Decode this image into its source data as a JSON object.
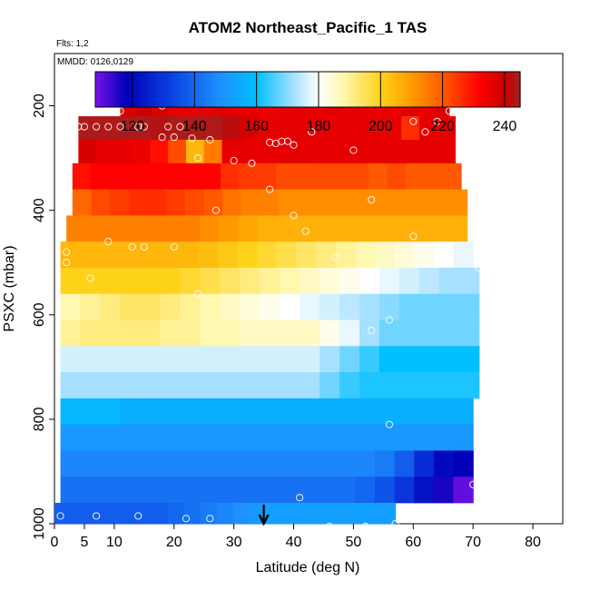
{
  "chart_data": {
    "type": "heatmap",
    "title": "ATOM2 Northeast_Pacific_1 TAS",
    "note_flights": "Flts: 1,2",
    "note_dates": "MMDD: 0126,0129",
    "xlabel": "Latitude (deg N)",
    "ylabel": "PSXC (mbar)",
    "xlim": [
      0,
      85
    ],
    "ylim": [
      1000,
      100
    ],
    "x_ticks": [
      0,
      5,
      10,
      20,
      30,
      40,
      50,
      60,
      70,
      80
    ],
    "y_ticks": [
      200,
      400,
      600,
      800,
      1000
    ],
    "colorbar": {
      "range": [
        108,
        245
      ],
      "ticks": [
        120,
        140,
        160,
        180,
        200,
        220,
        240
      ],
      "stops": [
        {
          "v": 108,
          "c": "#7b13e8"
        },
        {
          "v": 118,
          "c": "#0000b8"
        },
        {
          "v": 132,
          "c": "#0a3ee0"
        },
        {
          "v": 148,
          "c": "#1e90ff"
        },
        {
          "v": 160,
          "c": "#00bfff"
        },
        {
          "v": 172,
          "c": "#a6e0ff"
        },
        {
          "v": 180,
          "c": "#ffffff"
        },
        {
          "v": 188,
          "c": "#fff8b0"
        },
        {
          "v": 200,
          "c": "#ffd21a"
        },
        {
          "v": 210,
          "c": "#ff9b00"
        },
        {
          "v": 220,
          "c": "#ff5a00"
        },
        {
          "v": 232,
          "c": "#ff0000"
        },
        {
          "v": 240,
          "c": "#cc0000"
        },
        {
          "v": 245,
          "c": "#a52020"
        }
      ]
    },
    "pressure_bands": [
      {
        "p": [
          170,
          220
        ],
        "lat": [
          11,
          66
        ],
        "tas": [
          238,
          240,
          238,
          236,
          236,
          236,
          237,
          236,
          236,
          235,
          236,
          236,
          236,
          237,
          236,
          236,
          236,
          235,
          237,
          236,
          238
        ]
      },
      {
        "p": [
          220,
          265
        ],
        "lat": [
          4,
          67
        ],
        "tas": [
          244,
          244,
          244,
          244,
          243,
          244,
          244,
          244,
          242,
          238,
          236,
          236,
          236,
          236,
          236,
          236,
          236,
          236,
          226,
          236,
          236
        ]
      },
      {
        "p": [
          265,
          310
        ],
        "lat": [
          4,
          67
        ],
        "tas": [
          238,
          236,
          236,
          235,
          230,
          222,
          205,
          215,
          236,
          236,
          236,
          236,
          236,
          236,
          236,
          236,
          236,
          236,
          236,
          236,
          236
        ]
      },
      {
        "p": [
          310,
          360
        ],
        "lat": [
          3,
          68
        ],
        "tas": [
          230,
          232,
          232,
          232,
          232,
          232,
          232,
          232,
          226,
          224,
          224,
          222,
          222,
          222,
          222,
          222,
          220,
          222,
          220,
          220,
          220
        ]
      },
      {
        "p": [
          360,
          410
        ],
        "lat": [
          3,
          69
        ],
        "tas": [
          218,
          222,
          224,
          226,
          226,
          224,
          222,
          220,
          216,
          214,
          214,
          212,
          212,
          212,
          212,
          212,
          212,
          212,
          212,
          212,
          212
        ]
      },
      {
        "p": [
          410,
          460
        ],
        "lat": [
          2,
          69
        ],
        "tas": [
          214,
          214,
          214,
          214,
          214,
          214,
          214,
          212,
          210,
          208,
          206,
          206,
          206,
          206,
          206,
          206,
          206,
          206,
          206,
          206,
          206
        ]
      },
      {
        "p": [
          460,
          510
        ],
        "lat": [
          1,
          70
        ],
        "tas": [
          205,
          205,
          205,
          205,
          205,
          205,
          205,
          204,
          202,
          200,
          198,
          196,
          194,
          192,
          190,
          188,
          186,
          184,
          182,
          180,
          178
        ]
      },
      {
        "p": [
          510,
          560
        ],
        "lat": [
          1,
          71
        ],
        "tas": [
          200,
          200,
          200,
          200,
          200,
          200,
          198,
          196,
          194,
          192,
          190,
          188,
          186,
          184,
          182,
          180,
          178,
          176,
          174,
          172,
          172
        ]
      },
      {
        "p": [
          560,
          610
        ],
        "lat": [
          1,
          71
        ],
        "tas": [
          188,
          190,
          192,
          194,
          194,
          192,
          190,
          188,
          186,
          184,
          182,
          180,
          178,
          176,
          174,
          172,
          170,
          168,
          168,
          168,
          168
        ]
      },
      {
        "p": [
          610,
          660
        ],
        "lat": [
          1,
          71
        ],
        "tas": [
          190,
          192,
          192,
          192,
          192,
          190,
          190,
          188,
          188,
          186,
          186,
          186,
          186,
          182,
          178,
          172,
          168,
          168,
          168,
          168,
          168
        ]
      },
      {
        "p": [
          660,
          710
        ],
        "lat": [
          1,
          71
        ],
        "tas": [
          176,
          176,
          176,
          176,
          176,
          176,
          176,
          176,
          176,
          176,
          176,
          176,
          176,
          172,
          168,
          164,
          160,
          160,
          160,
          160,
          160
        ]
      },
      {
        "p": [
          710,
          760
        ],
        "lat": [
          1,
          71
        ],
        "tas": [
          172,
          172,
          172,
          172,
          172,
          172,
          172,
          172,
          172,
          172,
          172,
          172,
          172,
          168,
          164,
          162,
          162,
          162,
          162,
          162,
          162
        ]
      },
      {
        "p": [
          760,
          810
        ],
        "lat": [
          1,
          70
        ],
        "tas": [
          158,
          158,
          158,
          156,
          156,
          156,
          156,
          156,
          156,
          156,
          156,
          156,
          156,
          156,
          156,
          156,
          156,
          156,
          156,
          156,
          156
        ]
      },
      {
        "p": [
          810,
          860
        ],
        "lat": [
          1,
          70
        ],
        "tas": [
          150,
          150,
          150,
          150,
          150,
          150,
          150,
          150,
          150,
          150,
          150,
          150,
          150,
          150,
          150,
          150,
          150,
          150,
          150,
          150,
          150
        ]
      },
      {
        "p": [
          860,
          910
        ],
        "lat": [
          1,
          70
        ],
        "tas": [
          146,
          146,
          146,
          146,
          146,
          146,
          146,
          146,
          146,
          146,
          146,
          146,
          146,
          146,
          146,
          146,
          144,
          138,
          128,
          120,
          118
        ]
      },
      {
        "p": [
          910,
          960
        ],
        "lat": [
          1,
          70
        ],
        "tas": [
          142,
          142,
          142,
          142,
          142,
          142,
          142,
          142,
          142,
          142,
          142,
          142,
          142,
          142,
          142,
          140,
          136,
          130,
          122,
          116,
          110
        ]
      },
      {
        "p": [
          960,
          1010
        ],
        "lat": [
          0,
          57
        ],
        "tas": [
          138,
          138,
          138,
          138,
          138,
          138,
          138,
          140,
          142,
          144,
          146,
          148,
          150,
          152,
          152,
          152,
          152,
          152,
          152,
          152,
          152
        ]
      }
    ],
    "points": [
      [
        11,
        210
      ],
      [
        18,
        200
      ],
      [
        30,
        180
      ],
      [
        64,
        230
      ],
      [
        66,
        210
      ],
      [
        4,
        240
      ],
      [
        5,
        240
      ],
      [
        7,
        240
      ],
      [
        9,
        240
      ],
      [
        11,
        240
      ],
      [
        14,
        240
      ],
      [
        15,
        240
      ],
      [
        19,
        240
      ],
      [
        21,
        240
      ],
      [
        43,
        250
      ],
      [
        60,
        230
      ],
      [
        62,
        250
      ],
      [
        18,
        260
      ],
      [
        20,
        260
      ],
      [
        23,
        262
      ],
      [
        26,
        265
      ],
      [
        36,
        270
      ],
      [
        37,
        272
      ],
      [
        38,
        268
      ],
      [
        39,
        268
      ],
      [
        40,
        275
      ],
      [
        50,
        285
      ],
      [
        24,
        300
      ],
      [
        30,
        305
      ],
      [
        33,
        310
      ],
      [
        36,
        360
      ],
      [
        27,
        400
      ],
      [
        40,
        410
      ],
      [
        53,
        380
      ],
      [
        42,
        440
      ],
      [
        60,
        450
      ],
      [
        9,
        460
      ],
      [
        13,
        470
      ],
      [
        15,
        470
      ],
      [
        20,
        470
      ],
      [
        2,
        480
      ],
      [
        47,
        490
      ],
      [
        71,
        500
      ],
      [
        2,
        500
      ],
      [
        6,
        530
      ],
      [
        45,
        520
      ],
      [
        71,
        510
      ],
      [
        72,
        570
      ],
      [
        24,
        560
      ],
      [
        40,
        590
      ],
      [
        36,
        600
      ],
      [
        56,
        610
      ],
      [
        53,
        630
      ],
      [
        56,
        810
      ],
      [
        70,
        925
      ],
      [
        41,
        950
      ],
      [
        1,
        985
      ],
      [
        7,
        985
      ],
      [
        14,
        985
      ],
      [
        22,
        990
      ],
      [
        26,
        990
      ],
      [
        46,
        1005
      ],
      [
        52,
        1005
      ],
      [
        57,
        1000
      ]
    ],
    "marker": {
      "x": 35,
      "label": "arrow"
    },
    "colors": {
      "point_outline": "#ffffff",
      "axis": "#000000"
    }
  }
}
